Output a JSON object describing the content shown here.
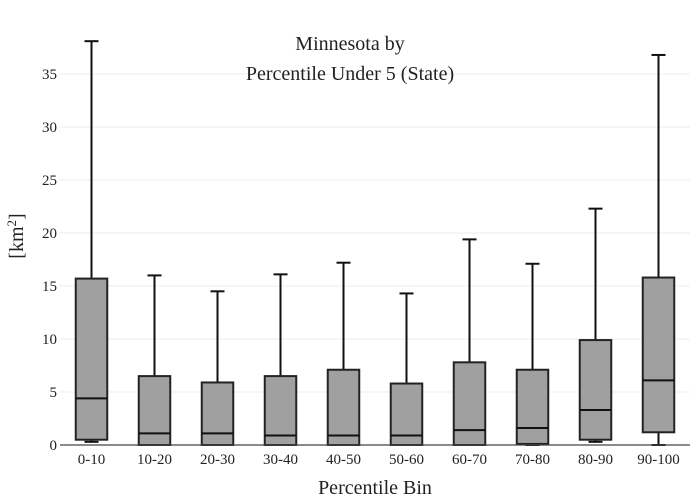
{
  "chart_data": {
    "type": "box",
    "title_line1": "Minnesota  by",
    "title_line2": "Percentile Under 5 (State)",
    "xlabel": "Percentile Bin",
    "ylabel_base": "[km",
    "ylabel_sup": "2",
    "ylabel_end": "]",
    "ylim": [
      0,
      38.4
    ],
    "yticks": [
      0,
      5,
      10,
      15,
      20,
      25,
      30,
      35
    ],
    "grid": true,
    "box_color": "#a0a0a0",
    "categories": [
      "0-10",
      "10-20",
      "20-30",
      "30-40",
      "40-50",
      "50-60",
      "60-70",
      "70-80",
      "80-90",
      "90-100"
    ],
    "boxes": [
      {
        "min": 0.3,
        "q1": 0.5,
        "median": 4.4,
        "q3": 15.7,
        "max": 38.1
      },
      {
        "min": 0.0,
        "q1": 0.0,
        "median": 1.1,
        "q3": 6.5,
        "max": 16.0
      },
      {
        "min": 0.0,
        "q1": 0.0,
        "median": 1.1,
        "q3": 5.9,
        "max": 14.5
      },
      {
        "min": 0.0,
        "q1": 0.0,
        "median": 0.9,
        "q3": 6.5,
        "max": 16.1
      },
      {
        "min": 0.0,
        "q1": 0.0,
        "median": 0.9,
        "q3": 7.1,
        "max": 17.2
      },
      {
        "min": 0.0,
        "q1": 0.0,
        "median": 0.9,
        "q3": 5.8,
        "max": 14.3
      },
      {
        "min": 0.0,
        "q1": 0.0,
        "median": 1.4,
        "q3": 7.8,
        "max": 19.4
      },
      {
        "min": 0.0,
        "q1": 0.1,
        "median": 1.6,
        "q3": 7.1,
        "max": 17.1
      },
      {
        "min": 0.3,
        "q1": 0.5,
        "median": 3.3,
        "q3": 9.9,
        "max": 22.3
      },
      {
        "min": 0.0,
        "q1": 1.2,
        "median": 6.1,
        "q3": 15.8,
        "max": 36.8
      }
    ]
  }
}
